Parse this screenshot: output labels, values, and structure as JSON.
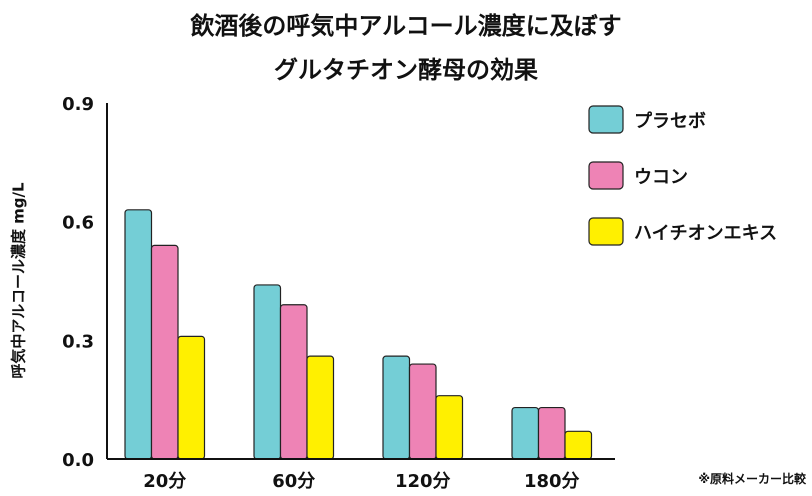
{
  "chart_data": {
    "type": "bar",
    "title": [
      "飲酒後の呼気中アルコール濃度に及ぼす",
      "グルタチオン酵母の効果"
    ],
    "xlabel": "",
    "ylabel": "呼気中アルコール濃度 mg/L",
    "ylim": [
      0,
      0.9
    ],
    "yticks": [
      "0.0",
      "0.3",
      "0.6",
      "0.9"
    ],
    "categories": [
      "20分",
      "60分",
      "120分",
      "180分"
    ],
    "series": [
      {
        "name": "プラセボ",
        "color": "#74ced6",
        "values": [
          0.63,
          0.44,
          0.26,
          0.13
        ]
      },
      {
        "name": "ウコン",
        "color": "#ee83b5",
        "values": [
          0.54,
          0.39,
          0.24,
          0.13
        ]
      },
      {
        "name": "ハイチオンエキス",
        "color": "#fff000",
        "values": [
          0.31,
          0.26,
          0.16,
          0.07
        ]
      }
    ],
    "legend_position": "top-right",
    "grid": false,
    "note": "※原料メーカー比較"
  }
}
